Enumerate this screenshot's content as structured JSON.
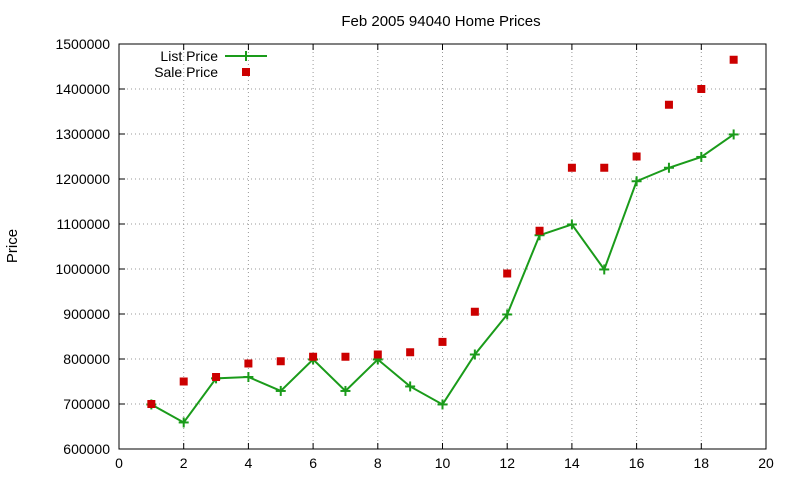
{
  "chart_data": {
    "type": "line",
    "title": "Feb 2005 94040 Home Prices",
    "xlabel": "",
    "ylabel": "Price",
    "xlim": [
      0,
      20
    ],
    "ylim": [
      600000,
      1500000
    ],
    "xticks": [
      0,
      2,
      4,
      6,
      8,
      10,
      12,
      14,
      16,
      18,
      20
    ],
    "yticks": [
      600000,
      700000,
      800000,
      900000,
      1000000,
      1100000,
      1200000,
      1300000,
      1400000,
      1500000
    ],
    "xtick_labels": [
      "0",
      "2",
      "4",
      "6",
      "8",
      "10",
      "12",
      "14",
      "16",
      "18",
      "20"
    ],
    "ytick_labels": [
      "600000",
      "700000",
      "800000",
      "900000",
      "1000000",
      "1100000",
      "1200000",
      "1300000",
      "1400000",
      "1500000"
    ],
    "grid": true,
    "legend_position": "top-left",
    "x": [
      1,
      2,
      3,
      4,
      5,
      6,
      7,
      8,
      9,
      10,
      11,
      12,
      13,
      14,
      15,
      16,
      17,
      18,
      19
    ],
    "series": [
      {
        "name": "List Price",
        "style": "line-with-plus-markers",
        "color": "#1a9b1a",
        "values": [
          699000,
          659000,
          757000,
          760000,
          729000,
          799000,
          729000,
          799000,
          739000,
          699000,
          810000,
          899000,
          1075000,
          1099000,
          999000,
          1195000,
          1225000,
          1249000,
          1299000
        ]
      },
      {
        "name": "Sale Price",
        "style": "square-markers",
        "color": "#cc0000",
        "values": [
          700000,
          750000,
          760000,
          790000,
          795000,
          805000,
          805000,
          810000,
          815000,
          838000,
          905000,
          990000,
          1085000,
          1225000,
          1225000,
          1250000,
          1365000,
          1400000,
          1465000
        ]
      }
    ]
  }
}
